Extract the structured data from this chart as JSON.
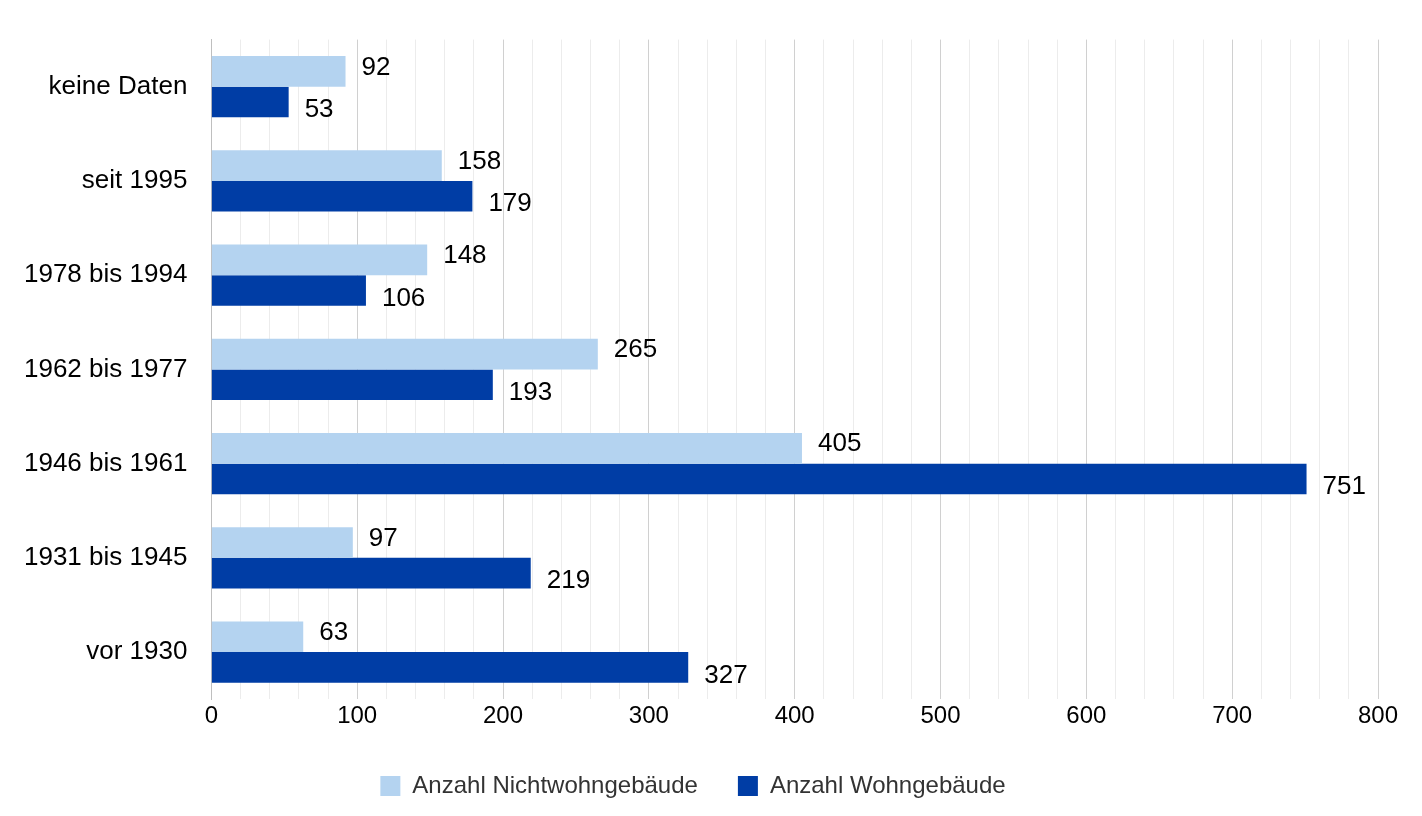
{
  "chart_data": {
    "type": "bar",
    "orientation": "horizontal",
    "categories": [
      "keine Daten",
      "seit 1995",
      "1978 bis 1994",
      "1962 bis 1977",
      "1946 bis 1961",
      "1931 bis 1945",
      "vor 1930"
    ],
    "series": [
      {
        "name": "Anzahl Nichtwohngebäude",
        "color": "#b4d3f0",
        "values": [
          92,
          158,
          148,
          265,
          405,
          97,
          63
        ]
      },
      {
        "name": "Anzahl Wohngebäude",
        "color": "#003da5",
        "values": [
          53,
          179,
          106,
          193,
          751,
          219,
          327
        ]
      }
    ],
    "xlim": [
      0,
      800
    ],
    "xticks": [
      0,
      {
        "value": 20,
        "label": null
      },
      {
        "value": 40,
        "label": null
      },
      {
        "value": 60,
        "label": null
      },
      {
        "value": 80,
        "label": null
      },
      100,
      {
        "value": 120,
        "label": null
      },
      {
        "value": 140,
        "label": null
      },
      {
        "value": 160,
        "label": null
      },
      {
        "value": 180,
        "label": null
      },
      200,
      {
        "value": 220,
        "label": null
      },
      {
        "value": 240,
        "label": null
      },
      {
        "value": 260,
        "label": null
      },
      {
        "value": 280,
        "label": null
      },
      300,
      {
        "value": 320,
        "label": null
      },
      {
        "value": 340,
        "label": null
      },
      {
        "value": 360,
        "label": null
      },
      {
        "value": 380,
        "label": null
      },
      400,
      {
        "value": 420,
        "label": null
      },
      {
        "value": 440,
        "label": null
      },
      {
        "value": 460,
        "label": null
      },
      {
        "value": 480,
        "label": null
      },
      500,
      {
        "value": 520,
        "label": null
      },
      {
        "value": 540,
        "label": null
      },
      {
        "value": 560,
        "label": null
      },
      {
        "value": 580,
        "label": null
      },
      600,
      {
        "value": 620,
        "label": null
      },
      {
        "value": 640,
        "label": null
      },
      {
        "value": 660,
        "label": null
      },
      {
        "value": 680,
        "label": null
      },
      700,
      {
        "value": 720,
        "label": null
      },
      {
        "value": 740,
        "label": null
      },
      {
        "value": 760,
        "label": null
      },
      {
        "value": 780,
        "label": null
      },
      800
    ],
    "grid": "x",
    "legend": "bottom",
    "data_labels": true
  }
}
